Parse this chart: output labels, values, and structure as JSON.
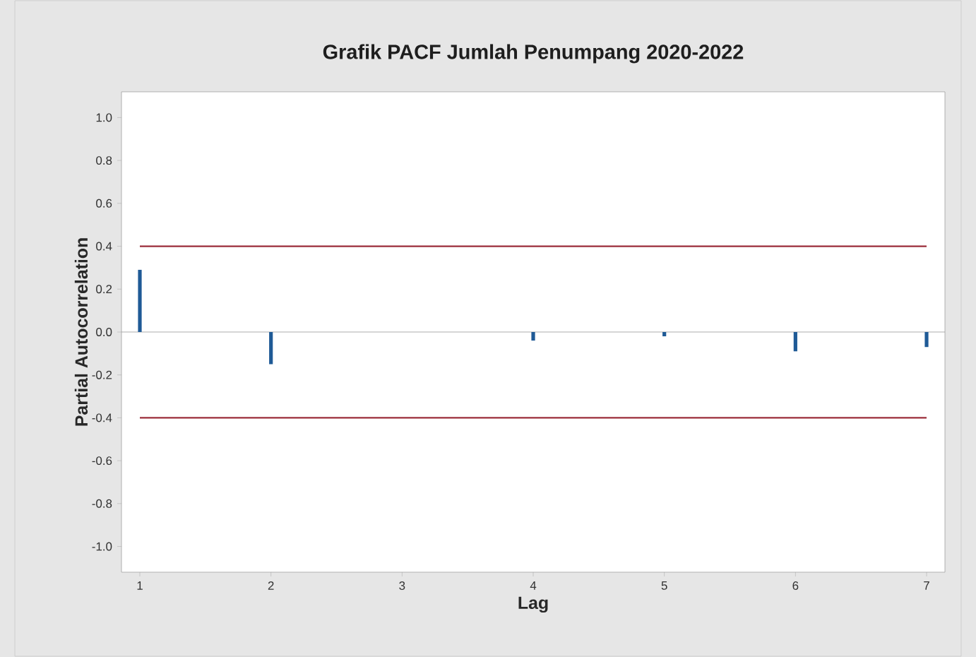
{
  "chart_data": {
    "type": "bar",
    "title": "Grafik PACF Jumlah Penumpang 2020-2022",
    "xlabel": "Lag",
    "ylabel": "Partial Autocorrelation",
    "x": [
      1,
      2,
      3,
      4,
      5,
      6,
      7
    ],
    "series": [
      {
        "color": "#1f5a96",
        "values": [
          0.29,
          -0.15,
          0.0,
          -0.04,
          -0.02,
          -0.09,
          -0.07
        ]
      }
    ],
    "xlim": [
      0.86,
      7.14
    ],
    "xticks": [
      1,
      2,
      3,
      4,
      5,
      6,
      7
    ],
    "ylim": [
      -1.12,
      1.12
    ],
    "yticks": [
      {
        "value": 1.0,
        "label": "1.0"
      },
      {
        "value": 0.8,
        "label": "0.8"
      },
      {
        "value": 0.6,
        "label": "0.6"
      },
      {
        "value": 0.4,
        "label": "0.4"
      },
      {
        "value": 0.2,
        "label": "0.2"
      },
      {
        "value": 0.0,
        "label": "0.0"
      },
      {
        "value": -0.2,
        "label": "-0.2"
      },
      {
        "value": -0.4,
        "label": "-0.4"
      },
      {
        "value": -0.6,
        "label": "-0.6"
      },
      {
        "value": -0.8,
        "label": "-0.8"
      },
      {
        "value": -1.0,
        "label": "-1.0"
      }
    ],
    "ref_lines": [
      {
        "axis": "y",
        "value": 0.4,
        "color": "#9b2d3a"
      },
      {
        "axis": "y",
        "value": -0.4,
        "color": "#9b2d3a"
      }
    ],
    "grid": false
  }
}
